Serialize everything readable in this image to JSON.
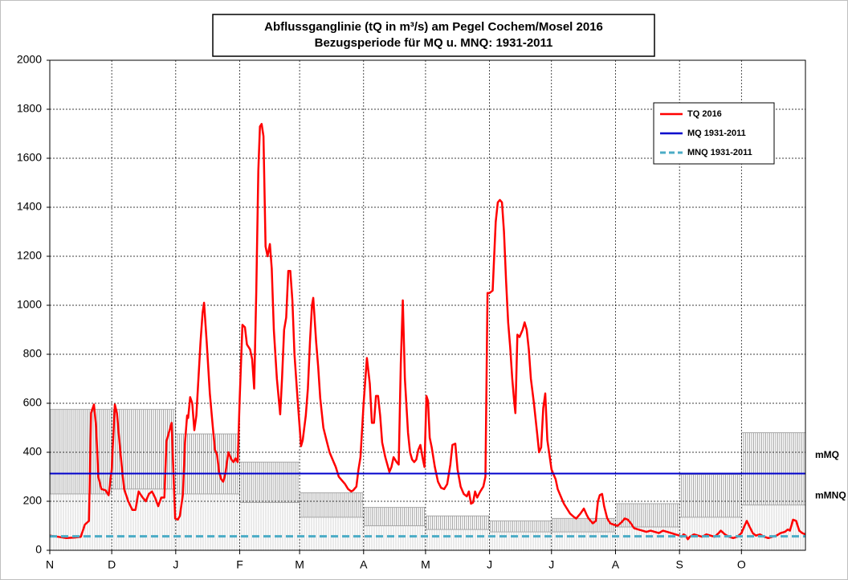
{
  "chart_data": {
    "type": "line",
    "title_lines": [
      "Abflussganglinie (tQ in m³/s) am Pegel Cochem/Mosel 2016",
      "Bezugsperiode für MQ u. MNQ: 1931-2011"
    ],
    "xlim": [
      0,
      366
    ],
    "xticks": [
      {
        "value": 0,
        "label": "N"
      },
      {
        "value": 30,
        "label": "D"
      },
      {
        "value": 61,
        "label": "J"
      },
      {
        "value": 92,
        "label": "F"
      },
      {
        "value": 121,
        "label": "M"
      },
      {
        "value": 152,
        "label": "A"
      },
      {
        "value": 182,
        "label": "M"
      },
      {
        "value": 213,
        "label": "J"
      },
      {
        "value": 243,
        "label": "J"
      },
      {
        "value": 274,
        "label": "A"
      },
      {
        "value": 305,
        "label": "S"
      },
      {
        "value": 335,
        "label": "O"
      }
    ],
    "ylim": [
      0,
      2000
    ],
    "yticks": [
      0,
      200,
      400,
      600,
      800,
      1000,
      1200,
      1400,
      1600,
      1800,
      2000
    ],
    "grid": true,
    "legend": "upper right",
    "x": [
      0,
      4,
      8,
      12,
      15,
      17,
      19,
      20,
      21.4,
      22.5,
      23.5,
      25,
      27,
      28.5,
      30,
      31.5,
      32.5,
      34,
      35,
      36,
      38,
      40,
      41.5,
      43,
      45,
      46.5,
      48,
      49.5,
      51,
      52.5,
      54,
      55.5,
      56.5,
      59,
      60.7,
      62,
      63,
      64.5,
      65.5,
      66.5,
      67,
      68,
      69,
      70,
      71,
      72,
      73,
      74,
      74.7,
      76,
      77.5,
      79,
      80,
      81,
      82,
      83,
      84,
      85,
      86.5,
      88,
      89,
      90,
      91,
      92,
      93.3,
      94.5,
      95.5,
      97,
      98,
      99,
      100,
      101,
      101.8,
      102.6,
      103.5,
      104.5,
      105.5,
      106.6,
      107.5,
      108.5,
      110,
      111.6,
      112.5,
      113.5,
      114.5,
      115.5,
      116.5,
      117.5,
      118.5,
      120,
      121.7,
      122.5,
      124,
      125,
      126,
      127,
      127.6,
      129,
      130,
      131,
      132.5,
      134,
      135.5,
      137,
      138.5,
      140,
      141.5,
      143,
      144.5,
      146,
      147,
      148.5,
      149.5,
      150.5,
      152,
      153.6,
      155,
      156,
      157,
      158,
      159,
      160,
      161,
      162.5,
      164.5,
      165.5,
      166.5,
      168,
      169,
      170,
      171,
      172,
      173.5,
      174.5,
      175.5,
      176.5,
      177.5,
      178.5,
      179.5,
      180.5,
      181.5,
      182.4,
      183.2,
      184,
      185,
      186.5,
      188,
      189.5,
      191,
      192.5,
      194,
      195,
      196.4,
      197.5,
      199,
      200.5,
      202,
      203,
      204,
      205,
      206,
      207,
      208.5,
      210,
      211,
      212,
      213,
      214.5,
      216,
      217,
      218,
      219,
      220,
      221,
      222,
      223,
      224,
      225,
      225.5,
      226.5,
      227.5,
      229,
      230,
      231,
      232,
      233,
      234.5,
      236,
      237,
      238,
      239,
      240,
      241,
      242,
      243,
      244,
      245,
      246,
      247.5,
      249,
      250.5,
      252,
      254,
      255,
      256,
      257,
      258.7,
      260,
      261,
      263,
      264.5,
      265.5,
      266.4,
      267.5,
      268.5,
      270,
      271.5,
      273,
      275,
      277,
      278.5,
      280,
      281.5,
      283,
      285,
      287,
      289,
      291,
      293,
      295,
      297,
      299,
      301,
      303,
      305,
      306,
      307,
      308,
      309,
      310,
      312,
      314,
      316,
      318,
      320,
      322,
      324,
      325,
      327,
      329,
      331,
      333,
      335,
      336.5,
      337.6,
      339,
      340.5,
      342,
      344,
      346,
      348,
      350,
      352,
      354,
      356,
      357.5,
      358.5,
      360,
      361.5,
      363,
      364.5,
      366
    ],
    "series": [
      {
        "name": "TQ 2016",
        "color": "#ff0000",
        "values": [
          60,
          55,
          50,
          52,
          55,
          105,
          120,
          560,
          595,
          500,
          300,
          250,
          245,
          225,
          330,
          595,
          560,
          420,
          330,
          250,
          200,
          165,
          165,
          240,
          215,
          200,
          230,
          240,
          215,
          180,
          215,
          215,
          445,
          520,
          130,
          125,
          140,
          230,
          440,
          550,
          540,
          625,
          600,
          490,
          550,
          700,
          850,
          970,
          1010,
          850,
          640,
          500,
          410,
          390,
          320,
          290,
          280,
          310,
          400,
          370,
          360,
          375,
          360,
          620,
          920,
          910,
          840,
          820,
          780,
          660,
          1050,
          1550,
          1730,
          1740,
          1690,
          1240,
          1200,
          1250,
          1150,
          900,
          700,
          555,
          700,
          900,
          950,
          1140,
          1140,
          1020,
          800,
          620,
          425,
          450,
          550,
          660,
          850,
          1000,
          1030,
          850,
          750,
          620,
          500,
          450,
          400,
          370,
          340,
          300,
          285,
          270,
          250,
          240,
          245,
          260,
          330,
          380,
          600,
          785,
          680,
          520,
          520,
          630,
          630,
          550,
          440,
          380,
          320,
          340,
          380,
          360,
          350,
          760,
          1020,
          700,
          480,
          400,
          370,
          360,
          370,
          410,
          430,
          380,
          340,
          630,
          610,
          460,
          420,
          340,
          280,
          255,
          250,
          270,
          350,
          430,
          435,
          330,
          260,
          230,
          220,
          240,
          190,
          195,
          240,
          215,
          240,
          260,
          300,
          1050,
          1050,
          1060,
          1340,
          1420,
          1430,
          1420,
          1300,
          1100,
          930,
          830,
          700,
          600,
          560,
          880,
          870,
          900,
          930,
          900,
          820,
          700,
          600,
          480,
          400,
          420,
          580,
          640,
          450,
          390,
          330,
          310,
          290,
          250,
          220,
          190,
          170,
          150,
          135,
          130,
          140,
          150,
          170,
          145,
          130,
          110,
          120,
          200,
          225,
          230,
          180,
          130,
          110,
          105,
          100,
          115,
          130,
          125,
          110,
          90,
          85,
          80,
          75,
          80,
          75,
          70,
          80,
          75,
          70,
          65,
          60,
          55,
          65,
          60,
          45,
          55,
          65,
          60,
          55,
          65,
          60,
          55,
          70,
          80,
          65,
          55,
          50,
          55,
          70,
          100,
          120,
          95,
          70,
          60,
          65,
          55,
          50,
          55,
          60,
          70,
          75,
          85,
          80,
          125,
          120,
          80,
          70,
          65
        ]
      },
      {
        "name": "MQ 1931-2011",
        "color": "#0000cc",
        "value": 313
      },
      {
        "name": "MNQ 1931-2011",
        "color": "#4bacc6",
        "value": 57,
        "dash": true
      }
    ],
    "bands": {
      "upper_name": "mMQ",
      "upper": [
        575,
        575,
        475,
        360,
        235,
        175,
        140,
        120,
        130,
        190,
        310,
        480
      ],
      "lower_name": "mMNQ",
      "lower": [
        230,
        250,
        230,
        195,
        135,
        100,
        85,
        75,
        75,
        95,
        135,
        185
      ],
      "color": "#a6a6a6",
      "light_color": "#d4d4d4"
    }
  }
}
